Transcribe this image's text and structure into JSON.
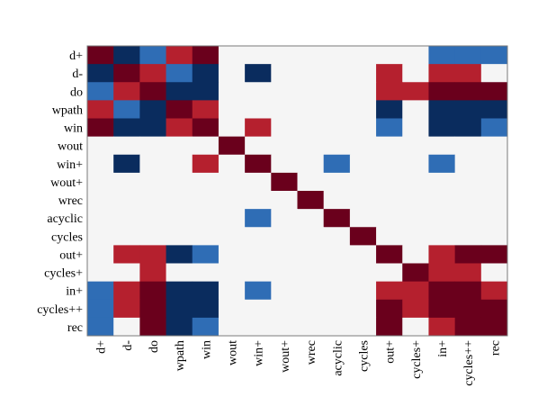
{
  "chart_data": {
    "type": "heatmap",
    "title": "",
    "xlabel": "",
    "ylabel": "",
    "rows": [
      "d+",
      "d-",
      "do",
      "wpath",
      "win",
      "wout",
      "win+",
      "wout+",
      "wrec",
      "acyclic",
      "cycles",
      "out+",
      "cycles+",
      "in+",
      "cycles++",
      "rec"
    ],
    "columns": [
      "d+",
      "d-",
      "do",
      "wpath",
      "win",
      "wout",
      "win+",
      "wout+",
      "wrec",
      "acyclic",
      "cycles",
      "out+",
      "cycles+",
      "in+",
      "cycles++",
      "rec"
    ],
    "value_scale": [
      -2,
      2
    ],
    "colors": {
      "-2": "#0a2c5e",
      "-1": "#2f6db5",
      "0": "#f5f5f5",
      "1": "#b5202e",
      "2": "#6a001c"
    },
    "matrix": [
      [
        2,
        -2,
        -1,
        1,
        2,
        0,
        0,
        0,
        0,
        0,
        0,
        0,
        0,
        -1,
        -1,
        -1
      ],
      [
        -2,
        2,
        1,
        -1,
        -2,
        0,
        -2,
        0,
        0,
        0,
        0,
        1,
        0,
        1,
        1,
        0
      ],
      [
        -1,
        1,
        2,
        -2,
        -2,
        0,
        0,
        0,
        0,
        0,
        0,
        1,
        1,
        2,
        2,
        2
      ],
      [
        1,
        -1,
        -2,
        2,
        1,
        0,
        0,
        0,
        0,
        0,
        0,
        -2,
        0,
        -2,
        -2,
        -2
      ],
      [
        2,
        -2,
        -2,
        1,
        2,
        0,
        1,
        0,
        0,
        0,
        0,
        -1,
        0,
        -2,
        -2,
        -1
      ],
      [
        0,
        0,
        0,
        0,
        0,
        2,
        0,
        0,
        0,
        0,
        0,
        0,
        0,
        0,
        0,
        0
      ],
      [
        0,
        -2,
        0,
        0,
        1,
        0,
        2,
        0,
        0,
        -1,
        0,
        0,
        0,
        -1,
        0,
        0
      ],
      [
        0,
        0,
        0,
        0,
        0,
        0,
        0,
        2,
        0,
        0,
        0,
        0,
        0,
        0,
        0,
        0
      ],
      [
        0,
        0,
        0,
        0,
        0,
        0,
        0,
        0,
        2,
        0,
        0,
        0,
        0,
        0,
        0,
        0
      ],
      [
        0,
        0,
        0,
        0,
        0,
        0,
        -1,
        0,
        0,
        2,
        0,
        0,
        0,
        0,
        0,
        0
      ],
      [
        0,
        0,
        0,
        0,
        0,
        0,
        0,
        0,
        0,
        0,
        2,
        0,
        0,
        0,
        0,
        0
      ],
      [
        0,
        1,
        1,
        -2,
        -1,
        0,
        0,
        0,
        0,
        0,
        0,
        2,
        0,
        1,
        2,
        2
      ],
      [
        0,
        0,
        1,
        0,
        0,
        0,
        0,
        0,
        0,
        0,
        0,
        0,
        2,
        1,
        1,
        0
      ],
      [
        -1,
        1,
        2,
        -2,
        -2,
        0,
        -1,
        0,
        0,
        0,
        0,
        1,
        1,
        2,
        2,
        1
      ],
      [
        -1,
        1,
        2,
        -2,
        -2,
        0,
        0,
        0,
        0,
        0,
        0,
        2,
        1,
        2,
        2,
        2
      ],
      [
        -1,
        0,
        2,
        -2,
        -1,
        0,
        0,
        0,
        0,
        0,
        0,
        2,
        0,
        1,
        2,
        2
      ]
    ],
    "grid": false,
    "legend": "none"
  }
}
